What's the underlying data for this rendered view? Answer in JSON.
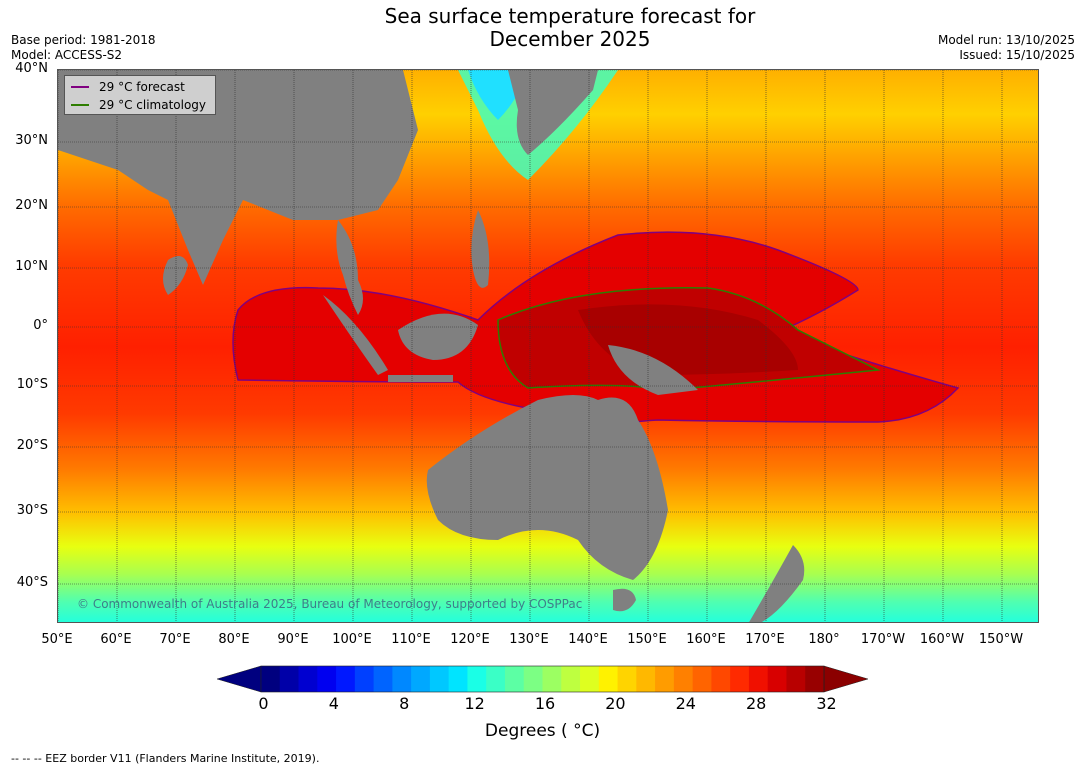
{
  "header": {
    "title_line1": "Sea surface temperature forecast for",
    "title_line2": "December 2025",
    "base_period": "Base period: 1981-2018",
    "model": "Model: ACCESS-S2",
    "model_run": "Model run: 13/10/2025",
    "issued": "Issued: 15/10/2025"
  },
  "map": {
    "lat_labels": [
      "40°N",
      "30°N",
      "20°N",
      "10°N",
      "0°",
      "10°S",
      "20°S",
      "30°S",
      "40°S"
    ],
    "lon_labels": [
      "50°E",
      "60°E",
      "70°E",
      "80°E",
      "90°E",
      "100°E",
      "110°E",
      "120°E",
      "130°E",
      "140°E",
      "150°E",
      "160°E",
      "170°E",
      "180°",
      "170°W",
      "160°W",
      "150°W"
    ],
    "land_color": "#808080",
    "grid_color": "#333333",
    "copyright": "© Commonwealth of Australia 2025, Bureau of Meteorology, supported by COSPPac"
  },
  "legend": {
    "forecast_label": "29 °C  forecast",
    "forecast_color": "#800080",
    "climatology_label": "29 °C  climatology",
    "climatology_color": "#2e7d00"
  },
  "colorbar": {
    "tick_labels": [
      "0",
      "4",
      "8",
      "12",
      "16",
      "20",
      "24",
      "28",
      "32"
    ],
    "label": "Degrees ( °C)",
    "min": 0,
    "max": 32,
    "colors": [
      "#00007f",
      "#0000a8",
      "#0000d0",
      "#0000f0",
      "#0018ff",
      "#0040ff",
      "#0064ff",
      "#0088ff",
      "#00a8ff",
      "#00c8ff",
      "#00e4ff",
      "#1affe6",
      "#3affc6",
      "#5cffa4",
      "#7cff84",
      "#9cff62",
      "#beff40",
      "#deff20",
      "#fff200",
      "#ffd400",
      "#ffb800",
      "#ff9c00",
      "#ff8000",
      "#ff6400",
      "#ff4800",
      "#ff2a00",
      "#f01000",
      "#d80000",
      "#b80000",
      "#980000"
    ]
  },
  "footer": {
    "eez_note": "--  --  -- EEZ border V11 (Flanders Marine Institute, 2019)."
  }
}
